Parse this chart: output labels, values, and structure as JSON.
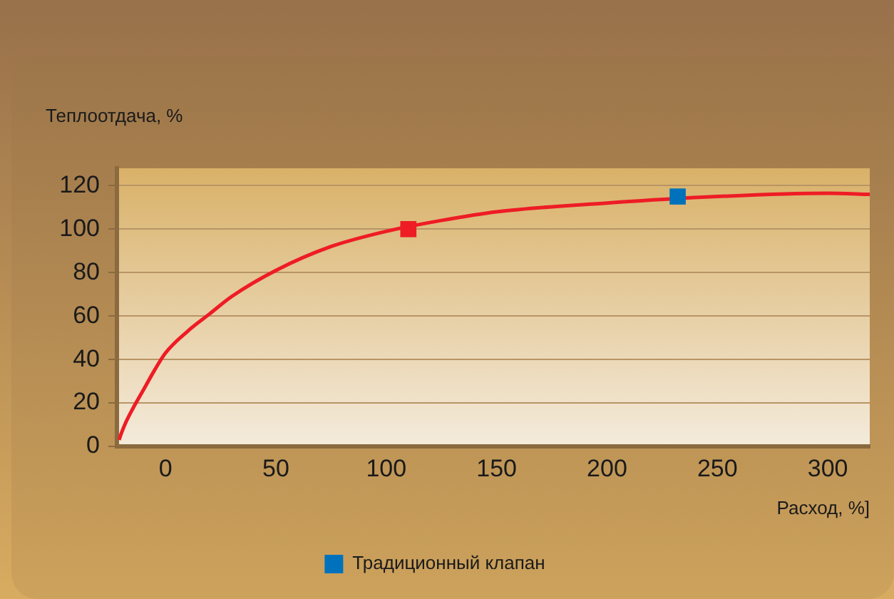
{
  "chart_data": {
    "type": "line",
    "xlabel": "Расход, %]",
    "ylabel": "Теплоотдача, %",
    "xlim": [
      -22,
      319
    ],
    "xticks": [
      0,
      50,
      100,
      150,
      200,
      250,
      300
    ],
    "ylim": [
      0,
      128
    ],
    "yticks": [
      0,
      20,
      40,
      60,
      80,
      100,
      120
    ],
    "grid": "y",
    "legend": "bottom",
    "series": [
      {
        "type": "line",
        "color": "#ee1c25",
        "marker": "none",
        "x": [
          -21,
          -20,
          -18,
          -15,
          -10,
          -5,
          0,
          10,
          20,
          30,
          50,
          75,
          100,
          125,
          150,
          200,
          250,
          300,
          319
        ],
        "values": [
          3,
          6,
          11,
          17,
          26,
          35,
          43,
          53,
          61,
          69,
          81,
          92,
          99,
          104,
          108,
          112,
          115,
          116.5,
          116
        ]
      },
      {
        "type": "scatter",
        "name": "Традиционный клапан",
        "color": "#0072bc",
        "marker": "square",
        "x": [
          232
        ],
        "values": [
          115
        ]
      },
      {
        "type": "scatter",
        "color": "#ee1c25",
        "marker": "square",
        "x": [
          110
        ],
        "values": [
          100
        ]
      }
    ]
  }
}
